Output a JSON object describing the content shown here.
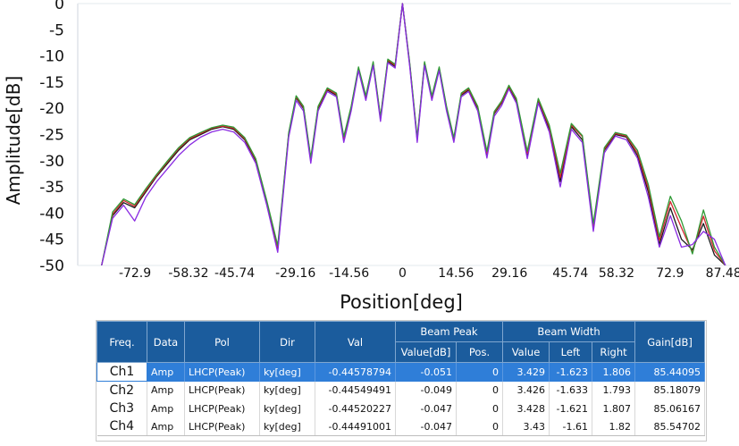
{
  "chart_data": {
    "type": "line",
    "xlabel": "Position[deg]",
    "ylabel": "Amplitude[dB]",
    "xlim": [
      -88.5,
      89.5
    ],
    "ylim": [
      -50,
      0
    ],
    "y_ticks": [
      "0",
      "-5",
      "-10",
      "-15",
      "-20",
      "-25",
      "-30",
      "-35",
      "-40",
      "-45",
      "-50"
    ],
    "x_ticks": [
      "-72.9",
      "-58.32",
      "-45.74",
      "-29.16",
      "-14.56",
      "0",
      "14.56",
      "29.16",
      "45.74",
      "58.32",
      "72.9",
      "87.48"
    ],
    "x_tick_values": [
      -72.9,
      -58.32,
      -45.74,
      -29.16,
      -14.56,
      0,
      14.56,
      29.16,
      45.74,
      58.32,
      72.9,
      87.48
    ],
    "x": [
      -82,
      -79,
      -76,
      -73,
      -70,
      -67,
      -64,
      -61,
      -58,
      -55,
      -52,
      -49,
      -46,
      -43,
      -40,
      -37,
      -34,
      -31,
      -29,
      -27,
      -25,
      -23,
      -20.5,
      -18,
      -16,
      -14,
      -12,
      -10,
      -8,
      -6,
      -4,
      -2,
      0,
      2,
      4,
      6,
      8,
      10,
      12,
      14,
      16,
      18,
      20.5,
      23,
      25,
      27,
      29,
      31,
      34,
      37,
      40,
      43,
      46,
      49,
      52,
      55,
      58,
      61,
      64,
      67,
      70,
      73,
      76,
      79,
      82,
      85,
      88
    ],
    "series": [
      {
        "color": "#1a1a1a",
        "values": [
          -50,
          -40.5,
          -38,
          -39,
          -36,
          -33,
          -30.5,
          -28,
          -26,
          -25,
          -24,
          -23.5,
          -24,
          -26,
          -30,
          -38,
          -47,
          -25,
          -18,
          -20,
          -30,
          -20,
          -16.5,
          -17.5,
          -26,
          -20,
          -12.5,
          -18,
          -11.5,
          -22,
          -11,
          -12,
          0,
          -12,
          -26,
          -11.5,
          -18,
          -12.5,
          -20,
          -26,
          -17.5,
          -16.5,
          -20,
          -29,
          -21,
          -19,
          -16,
          -18.5,
          -29,
          -18.5,
          -24,
          -34,
          -23.5,
          -26,
          -43,
          -28,
          -25,
          -25.5,
          -29,
          -36,
          -46,
          -39,
          -45,
          -47,
          -42,
          -48,
          -50
        ]
      },
      {
        "color": "#d3262f",
        "values": [
          -50,
          -40.2,
          -37.6,
          -38.7,
          -35.7,
          -32.8,
          -30.2,
          -27.7,
          -25.8,
          -24.8,
          -23.8,
          -23.4,
          -23.8,
          -25.8,
          -29.8,
          -37.8,
          -46.6,
          -24.8,
          -17.8,
          -19.8,
          -29.7,
          -19.8,
          -16.3,
          -17.3,
          -25.7,
          -19.8,
          -12.3,
          -17.8,
          -11.3,
          -21.8,
          -10.8,
          -11.8,
          0,
          -11.8,
          -25.8,
          -11.3,
          -17.8,
          -12.3,
          -19.8,
          -25.8,
          -17.3,
          -16.3,
          -19.8,
          -28.6,
          -20.8,
          -18.8,
          -15.8,
          -18.3,
          -28.6,
          -18.3,
          -23.6,
          -33.2,
          -23.2,
          -25.4,
          -42.5,
          -27.8,
          -24.8,
          -25.3,
          -28.5,
          -35.3,
          -45.2,
          -37.8,
          -42.8,
          -47.5,
          -40.6,
          -47.2,
          -50
        ]
      },
      {
        "color": "#2f9a35",
        "values": [
          -50,
          -39.8,
          -37.3,
          -38.4,
          -35.4,
          -32.6,
          -30,
          -27.5,
          -25.6,
          -24.6,
          -23.7,
          -23.2,
          -23.6,
          -25.6,
          -29.6,
          -37.6,
          -46.2,
          -24.6,
          -17.6,
          -19.6,
          -29.4,
          -19.6,
          -16.1,
          -17.1,
          -25.4,
          -19.6,
          -12.1,
          -17.6,
          -11.1,
          -21.6,
          -10.6,
          -11.6,
          0,
          -11.6,
          -25.6,
          -11.1,
          -17.6,
          -12.1,
          -19.6,
          -25.6,
          -17.1,
          -16.1,
          -19.6,
          -28.2,
          -20.6,
          -18.6,
          -15.6,
          -18.1,
          -28.2,
          -18.1,
          -23.2,
          -32.4,
          -22.9,
          -25.2,
          -42,
          -27.5,
          -24.6,
          -25.1,
          -28,
          -34.6,
          -44.5,
          -36.8,
          -41.5,
          -47.8,
          -39.4,
          -46.5,
          -50
        ]
      },
      {
        "color": "#8a2be2",
        "values": [
          -50,
          -41,
          -38.5,
          -41.5,
          -37,
          -34,
          -31.5,
          -29,
          -27,
          -25.5,
          -24.5,
          -24,
          -24.5,
          -26.5,
          -30.5,
          -38.5,
          -47.5,
          -25.5,
          -18.5,
          -20.5,
          -30.5,
          -20.5,
          -16.8,
          -17.8,
          -26.5,
          -20.5,
          -12.8,
          -18.5,
          -11.8,
          -22.5,
          -11.3,
          -12.3,
          0,
          -12.3,
          -26.5,
          -11.8,
          -18.5,
          -12.8,
          -20.5,
          -26.5,
          -17.8,
          -16.8,
          -20.5,
          -29.5,
          -21.5,
          -19.5,
          -16.3,
          -19,
          -29.6,
          -19,
          -24.5,
          -35,
          -24,
          -26.5,
          -43.5,
          -28.5,
          -25.3,
          -26,
          -29.5,
          -37,
          -46.5,
          -40.5,
          -46.5,
          -46,
          -43.5,
          -45,
          -50
        ]
      }
    ]
  },
  "table": {
    "headers": {
      "freq": "Freq.",
      "data": "Data",
      "pol": "Pol",
      "dir": "Dir",
      "val": "Val",
      "beam_peak": "Beam Peak",
      "beam_width": "Beam Width",
      "gain": "Gain[dB]",
      "value_db": "Value[dB]",
      "pos": "Pos.",
      "value": "Value",
      "left": "Left",
      "right": "Right"
    },
    "rows": [
      {
        "freq": "Ch1",
        "data": "Amp",
        "pol": "LHCP(Peak)",
        "dir": "ky[deg]",
        "val": "-0.44578794",
        "peak_value": "-0.051",
        "peak_pos": "0",
        "bw_value": "3.429",
        "bw_left": "-1.623",
        "bw_right": "1.806",
        "gain": "85.44095"
      },
      {
        "freq": "Ch2",
        "data": "Amp",
        "pol": "LHCP(Peak)",
        "dir": "ky[deg]",
        "val": "-0.44549491",
        "peak_value": "-0.049",
        "peak_pos": "0",
        "bw_value": "3.426",
        "bw_left": "-1.633",
        "bw_right": "1.793",
        "gain": "85.18079"
      },
      {
        "freq": "Ch3",
        "data": "Amp",
        "pol": "LHCP(Peak)",
        "dir": "ky[deg]",
        "val": "-0.44520227",
        "peak_value": "-0.047",
        "peak_pos": "0",
        "bw_value": "3.428",
        "bw_left": "-1.621",
        "bw_right": "1.807",
        "gain": "85.06167"
      },
      {
        "freq": "Ch4",
        "data": "Amp",
        "pol": "LHCP(Peak)",
        "dir": "ky[deg]",
        "val": "-0.44491001",
        "peak_value": "-0.047",
        "peak_pos": "0",
        "bw_value": "3.43",
        "bw_left": "-1.61",
        "bw_right": "1.82",
        "gain": "85.54702"
      }
    ],
    "selected_row": "Ch1"
  },
  "colors": {
    "header_bg": "#1b5c9d",
    "selection": "#2f7ed8"
  }
}
